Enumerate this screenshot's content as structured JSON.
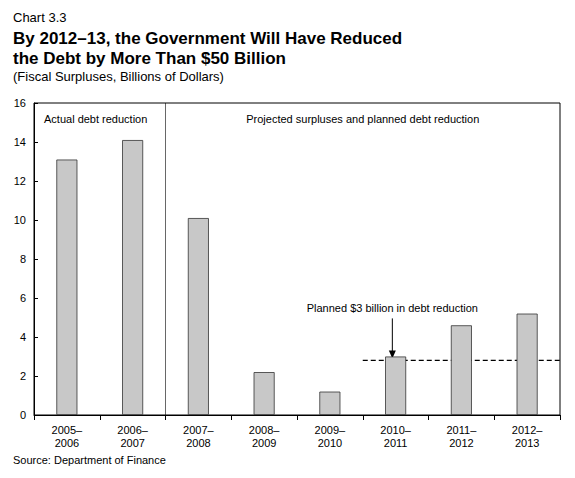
{
  "chart_data": {
    "type": "bar",
    "label": "Chart 3.3",
    "title": "By 2012–13, the Government Will Have Reduced\nthe Debt by More Than $50 Billion",
    "subtitle": "(Fiscal Surpluses, Billions of Dollars)",
    "source": "Source: Department of Finance",
    "categories": [
      "2005–\n2006",
      "2006–\n2007",
      "2007–\n2008",
      "2008–\n2009",
      "2009–\n2010",
      "2010–\n2011",
      "2011–\n2012",
      "2012–\n2013"
    ],
    "values": [
      13.1,
      14.1,
      10.1,
      2.2,
      1.2,
      3.0,
      4.6,
      5.2
    ],
    "color": "#c8c8c8",
    "ylim": [
      0,
      16
    ],
    "yticks": [
      0,
      2,
      4,
      6,
      8,
      10,
      12,
      14,
      16
    ],
    "grid": false,
    "annotations": [
      {
        "text": "Actual debt reduction",
        "span": [
          "2005–\n2006",
          "2006–\n2007"
        ]
      },
      {
        "text": "Projected surpluses and planned debt reduction",
        "span": [
          "2007–\n2008",
          "2012–\n2013"
        ]
      },
      {
        "text": "Planned $3 billion in debt reduction",
        "value": 2.8,
        "span": [
          "2010–\n2011",
          "2012–\n2013"
        ]
      }
    ]
  }
}
